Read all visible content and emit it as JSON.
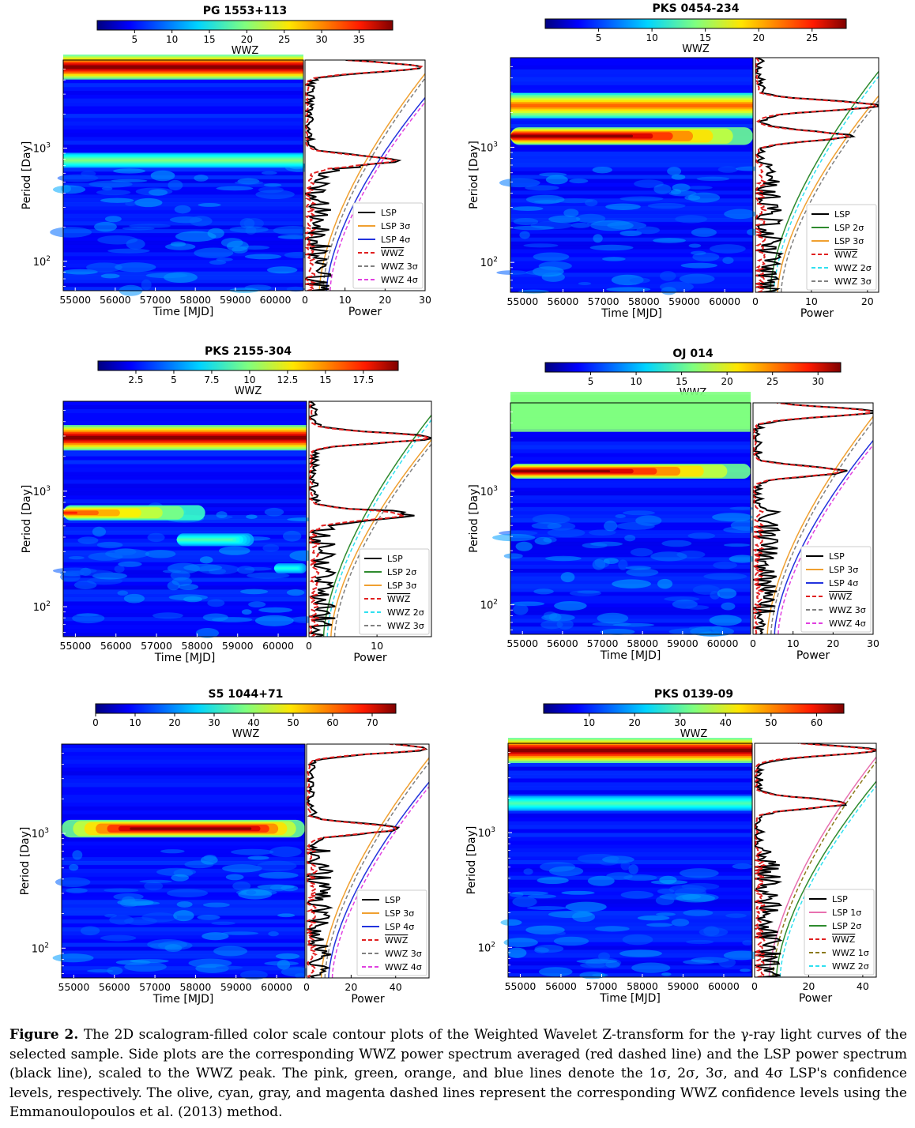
{
  "figure": {
    "panels": [
      {
        "id": "pg1553",
        "title": "PG 1553+113",
        "colorbar": {
          "label": "WWZ",
          "min": 0,
          "max": 39.5,
          "ticks": [
            5,
            10,
            15,
            20,
            25,
            30,
            35
          ]
        },
        "scalogram": {
          "xlabel": "Time [MJD]",
          "ylabel": "Period [Day]",
          "xlim": [
            54700,
            60700
          ],
          "xticks": [
            55000,
            56000,
            57000,
            58000,
            59000,
            60000
          ],
          "ylim": [
            55,
            6000
          ],
          "yticks_labels": [
            "10^2",
            "10^3"
          ],
          "bands": [
            {
              "period": 5200,
              "width": 0.05,
              "intensity": 1.0,
              "t_start": 54700,
              "t_end": 60700,
              "taper": 0
            },
            {
              "period": 780,
              "width": 0.03,
              "intensity": 0.5,
              "t_start": 54700,
              "t_end": 60700,
              "taper": 0
            }
          ]
        },
        "power": {
          "xlabel": "Power",
          "xlim": [
            0,
            30
          ],
          "xticks": [
            0,
            10,
            20,
            30
          ],
          "legend": [
            {
              "label": "LSP",
              "color": "#000000",
              "dash": "solid"
            },
            {
              "label": "LSP 3σ",
              "color": "#f0a030",
              "dash": "solid"
            },
            {
              "label": "LSP 4σ",
              "color": "#2233dd",
              "dash": "solid"
            },
            {
              "label": "WWZ",
              "color": "#e02020",
              "dash": "dashed",
              "overline": true
            },
            {
              "label": "WWZ 3σ",
              "color": "#808080",
              "dash": "dashed"
            },
            {
              "label": "WWZ 4σ",
              "color": "#e040e0",
              "dash": "dashed"
            }
          ],
          "peaks": [
            5200,
            780
          ]
        }
      },
      {
        "id": "pks0454",
        "title": "PKS 0454-234",
        "colorbar": {
          "label": "WWZ",
          "min": 0,
          "max": 28.2,
          "ticks": [
            5,
            10,
            15,
            20,
            25
          ]
        },
        "scalogram": {
          "xlabel": "Time [MJD]",
          "ylabel": "Period [Day]",
          "xlim": [
            54700,
            60700
          ],
          "xticks": [
            55000,
            56000,
            57000,
            58000,
            59000,
            60000
          ],
          "ylim": [
            55,
            6000
          ],
          "yticks_labels": [
            "10^2",
            "10^3"
          ],
          "bands": [
            {
              "period": 2300,
              "width": 0.05,
              "intensity": 0.78,
              "t_start": 54700,
              "t_end": 60700,
              "taper": 0
            },
            {
              "period": 1250,
              "width": 0.035,
              "intensity": 1.0,
              "t_start": 54700,
              "t_end": 60700,
              "taper": 0.55
            }
          ]
        },
        "power": {
          "xlabel": "Power",
          "xlim": [
            0,
            22
          ],
          "xticks": [
            0,
            10,
            20
          ],
          "legend": [
            {
              "label": "LSP",
              "color": "#000000",
              "dash": "solid"
            },
            {
              "label": "LSP 2σ",
              "color": "#2e8b2e",
              "dash": "solid"
            },
            {
              "label": "LSP 3σ",
              "color": "#f0a030",
              "dash": "solid"
            },
            {
              "label": "WWZ",
              "color": "#e02020",
              "dash": "dashed",
              "overline": true
            },
            {
              "label": "WWZ 2σ",
              "color": "#30e0f0",
              "dash": "dashed"
            },
            {
              "label": "WWZ 3σ",
              "color": "#808080",
              "dash": "dashed"
            }
          ],
          "peaks": [
            2300,
            1250
          ]
        }
      },
      {
        "id": "pks2155",
        "title": "PKS 2155-304",
        "colorbar": {
          "label": "WWZ",
          "min": 0,
          "max": 19.8,
          "ticks": [
            2.5,
            5.0,
            7.5,
            10.0,
            12.5,
            15.0,
            17.5
          ]
        },
        "scalogram": {
          "xlabel": "Time [MJD]",
          "ylabel": "Period [Day]",
          "xlim": [
            54700,
            60700
          ],
          "xticks": [
            55000,
            56000,
            57000,
            58000,
            59000,
            60000
          ],
          "ylim": [
            55,
            6000
          ],
          "yticks_labels": [
            "10^2",
            "10^3"
          ],
          "bands": [
            {
              "period": 2900,
              "width": 0.05,
              "intensity": 1.0,
              "t_start": 54700,
              "t_end": 60700,
              "taper": 0
            },
            {
              "period": 650,
              "width": 0.03,
              "intensity": 0.85,
              "t_start": 54700,
              "t_end": 58200,
              "taper": 1
            },
            {
              "period": 380,
              "width": 0.025,
              "intensity": 0.45,
              "t_start": 57500,
              "t_end": 59400,
              "taper": 0.3
            },
            {
              "period": 215,
              "width": 0.02,
              "intensity": 0.4,
              "t_start": 59900,
              "t_end": 60700,
              "taper": 0.3
            }
          ]
        },
        "power": {
          "xlabel": "Power",
          "xlim": [
            0,
            18
          ],
          "xticks": [
            0,
            10
          ],
          "legend": [
            {
              "label": "LSP",
              "color": "#000000",
              "dash": "solid"
            },
            {
              "label": "LSP 2σ",
              "color": "#2e8b2e",
              "dash": "solid"
            },
            {
              "label": "LSP 3σ",
              "color": "#f0a030",
              "dash": "solid"
            },
            {
              "label": "WWZ",
              "color": "#e02020",
              "dash": "dashed",
              "overline": true
            },
            {
              "label": "WWZ 2σ",
              "color": "#30e0f0",
              "dash": "dashed"
            },
            {
              "label": "WWZ 3σ",
              "color": "#808080",
              "dash": "dashed"
            }
          ],
          "peaks": [
            2900,
            620
          ]
        }
      },
      {
        "id": "oj014",
        "title": "OJ 014",
        "colorbar": {
          "label": "WWZ",
          "min": 0,
          "max": 32.5,
          "ticks": [
            5,
            10,
            15,
            20,
            25,
            30
          ]
        },
        "scalogram": {
          "xlabel": "Time [MJD]",
          "ylabel": "Period [Day]",
          "xlim": [
            54700,
            60700
          ],
          "xticks": [
            55000,
            56000,
            57000,
            58000,
            59000,
            60000
          ],
          "ylim": [
            55,
            6000
          ],
          "yticks_labels": [
            "10^2",
            "10^3"
          ],
          "bands": [
            {
              "period": 5000,
              "width": 0.08,
              "intensity": 0.5,
              "t_start": 54700,
              "t_end": 60700,
              "taper": 0,
              "flat": true
            },
            {
              "period": 1500,
              "width": 0.03,
              "intensity": 1.0,
              "t_start": 54700,
              "t_end": 60700,
              "taper": 0.65
            }
          ]
        },
        "power": {
          "xlabel": "Power",
          "xlim": [
            0,
            30
          ],
          "xticks": [
            0,
            10,
            20,
            30
          ],
          "legend": [
            {
              "label": "LSP",
              "color": "#000000",
              "dash": "solid"
            },
            {
              "label": "LSP 3σ",
              "color": "#f0a030",
              "dash": "solid"
            },
            {
              "label": "LSP 4σ",
              "color": "#2233dd",
              "dash": "solid"
            },
            {
              "label": "WWZ",
              "color": "#e02020",
              "dash": "dashed",
              "overline": true
            },
            {
              "label": "WWZ 3σ",
              "color": "#808080",
              "dash": "dashed"
            },
            {
              "label": "WWZ 4σ",
              "color": "#e040e0",
              "dash": "dashed"
            }
          ],
          "peaks": [
            5000,
            1500
          ]
        }
      },
      {
        "id": "s51044",
        "title": "S5 1044+71",
        "colorbar": {
          "label": "WWZ",
          "min": 0,
          "max": 76,
          "ticks": [
            0,
            10,
            20,
            30,
            40,
            50,
            60,
            70
          ]
        },
        "scalogram": {
          "xlabel": "Time [MJD]",
          "ylabel": "Period [Day]",
          "xlim": [
            54700,
            60700
          ],
          "xticks": [
            55000,
            56000,
            57000,
            58000,
            59000,
            60000
          ],
          "ylim": [
            55,
            6000
          ],
          "yticks_labels": [
            "10^2",
            "10^3"
          ],
          "bands": [
            {
              "period": 1100,
              "width": 0.035,
              "intensity": 1.0,
              "t_start": 54700,
              "t_end": 60700,
              "taper": 0.7
            }
          ]
        },
        "power": {
          "xlabel": "Power",
          "xlim": [
            0,
            55
          ],
          "xticks": [
            0,
            20,
            40
          ],
          "legend": [
            {
              "label": "LSP",
              "color": "#000000",
              "dash": "solid"
            },
            {
              "label": "LSP 3σ",
              "color": "#f0a030",
              "dash": "solid"
            },
            {
              "label": "LSP 4σ",
              "color": "#2233dd",
              "dash": "solid"
            },
            {
              "label": "WWZ",
              "color": "#e02020",
              "dash": "dashed",
              "overline": true
            },
            {
              "label": "WWZ 3σ",
              "color": "#808080",
              "dash": "dashed"
            },
            {
              "label": "WWZ 4σ",
              "color": "#e040e0",
              "dash": "dashed"
            }
          ],
          "peaks": [
            5500,
            1100
          ]
        }
      },
      {
        "id": "pks0139",
        "title": "PKS 0139-09",
        "colorbar": {
          "label": "WWZ",
          "min": 0,
          "max": 66,
          "ticks": [
            10,
            20,
            30,
            40,
            50,
            60
          ]
        },
        "scalogram": {
          "xlabel": "Time [MJD]",
          "ylabel": "Period [Day]",
          "xlim": [
            54700,
            60700
          ],
          "xticks": [
            55000,
            56000,
            57000,
            58000,
            59000,
            60000
          ],
          "ylim": [
            55,
            6000
          ],
          "yticks_labels": [
            "10^2",
            "10^3"
          ],
          "bands": [
            {
              "period": 5200,
              "width": 0.05,
              "intensity": 1.0,
              "t_start": 54700,
              "t_end": 60700,
              "taper": 0
            },
            {
              "period": 1800,
              "width": 0.03,
              "intensity": 0.45,
              "t_start": 54700,
              "t_end": 60700,
              "taper": 0
            }
          ]
        },
        "power": {
          "xlabel": "Power",
          "xlim": [
            0,
            45
          ],
          "xticks": [
            0,
            20,
            40
          ],
          "legend": [
            {
              "label": "LSP",
              "color": "#000000",
              "dash": "solid"
            },
            {
              "label": "LSP 1σ",
              "color": "#e870b0",
              "dash": "solid"
            },
            {
              "label": "LSP 2σ",
              "color": "#2e8b2e",
              "dash": "solid"
            },
            {
              "label": "WWZ",
              "color": "#e02020",
              "dash": "dashed",
              "overline": true
            },
            {
              "label": "WWZ 1σ",
              "color": "#8b7a1a",
              "dash": "dashed"
            },
            {
              "label": "WWZ 2σ",
              "color": "#30e0f0",
              "dash": "dashed"
            }
          ],
          "peaks": [
            5200,
            1800
          ]
        }
      }
    ]
  },
  "caption": {
    "label": "Figure 2.",
    "text": "The 2D scalogram-filled color scale contour plots of the Weighted Wavelet Z-transform for the γ-ray light curves of the selected sample. Side plots are the corresponding WWZ power spectrum averaged (red dashed line) and the LSP power spectrum (black line), scaled to the WWZ peak. The pink, green, orange, and blue lines denote the 1σ, 2σ, 3σ, and 4σ LSP's confidence levels, respectively. The olive, cyan, gray, and magenta dashed lines represent the corresponding WWZ confidence levels using the Emmanoulopoulos et al. (2013) method."
  }
}
